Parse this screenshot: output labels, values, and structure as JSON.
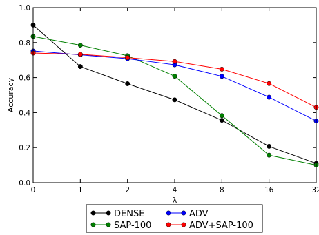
{
  "chart_data": {
    "type": "line",
    "xlabel": "λ",
    "ylabel": "Accuracy",
    "x_categories": [
      "0",
      "1",
      "2",
      "4",
      "8",
      "16",
      "32"
    ],
    "ylim": [
      0.0,
      1.0
    ],
    "yticks": [
      "0.0",
      "0.2",
      "0.4",
      "0.6",
      "0.8",
      "1.0"
    ],
    "grid": false,
    "legend_position": "bottom-center, outside plot",
    "series": [
      {
        "name": "DENSE",
        "color": "#000000",
        "values": [
          0.9,
          0.663,
          0.565,
          0.473,
          0.356,
          0.207,
          0.11
        ]
      },
      {
        "name": "SAP-100",
        "color": "#008000",
        "values": [
          0.835,
          0.785,
          0.725,
          0.608,
          0.383,
          0.157,
          0.1
        ]
      },
      {
        "name": "ADV",
        "color": "#0000ff",
        "values": [
          0.752,
          0.73,
          0.708,
          0.673,
          0.607,
          0.488,
          0.352
        ]
      },
      {
        "name": "ADV+SAP-100",
        "color": "#ff0000",
        "values": [
          0.74,
          0.733,
          0.714,
          0.692,
          0.648,
          0.566,
          0.43
        ]
      }
    ]
  }
}
